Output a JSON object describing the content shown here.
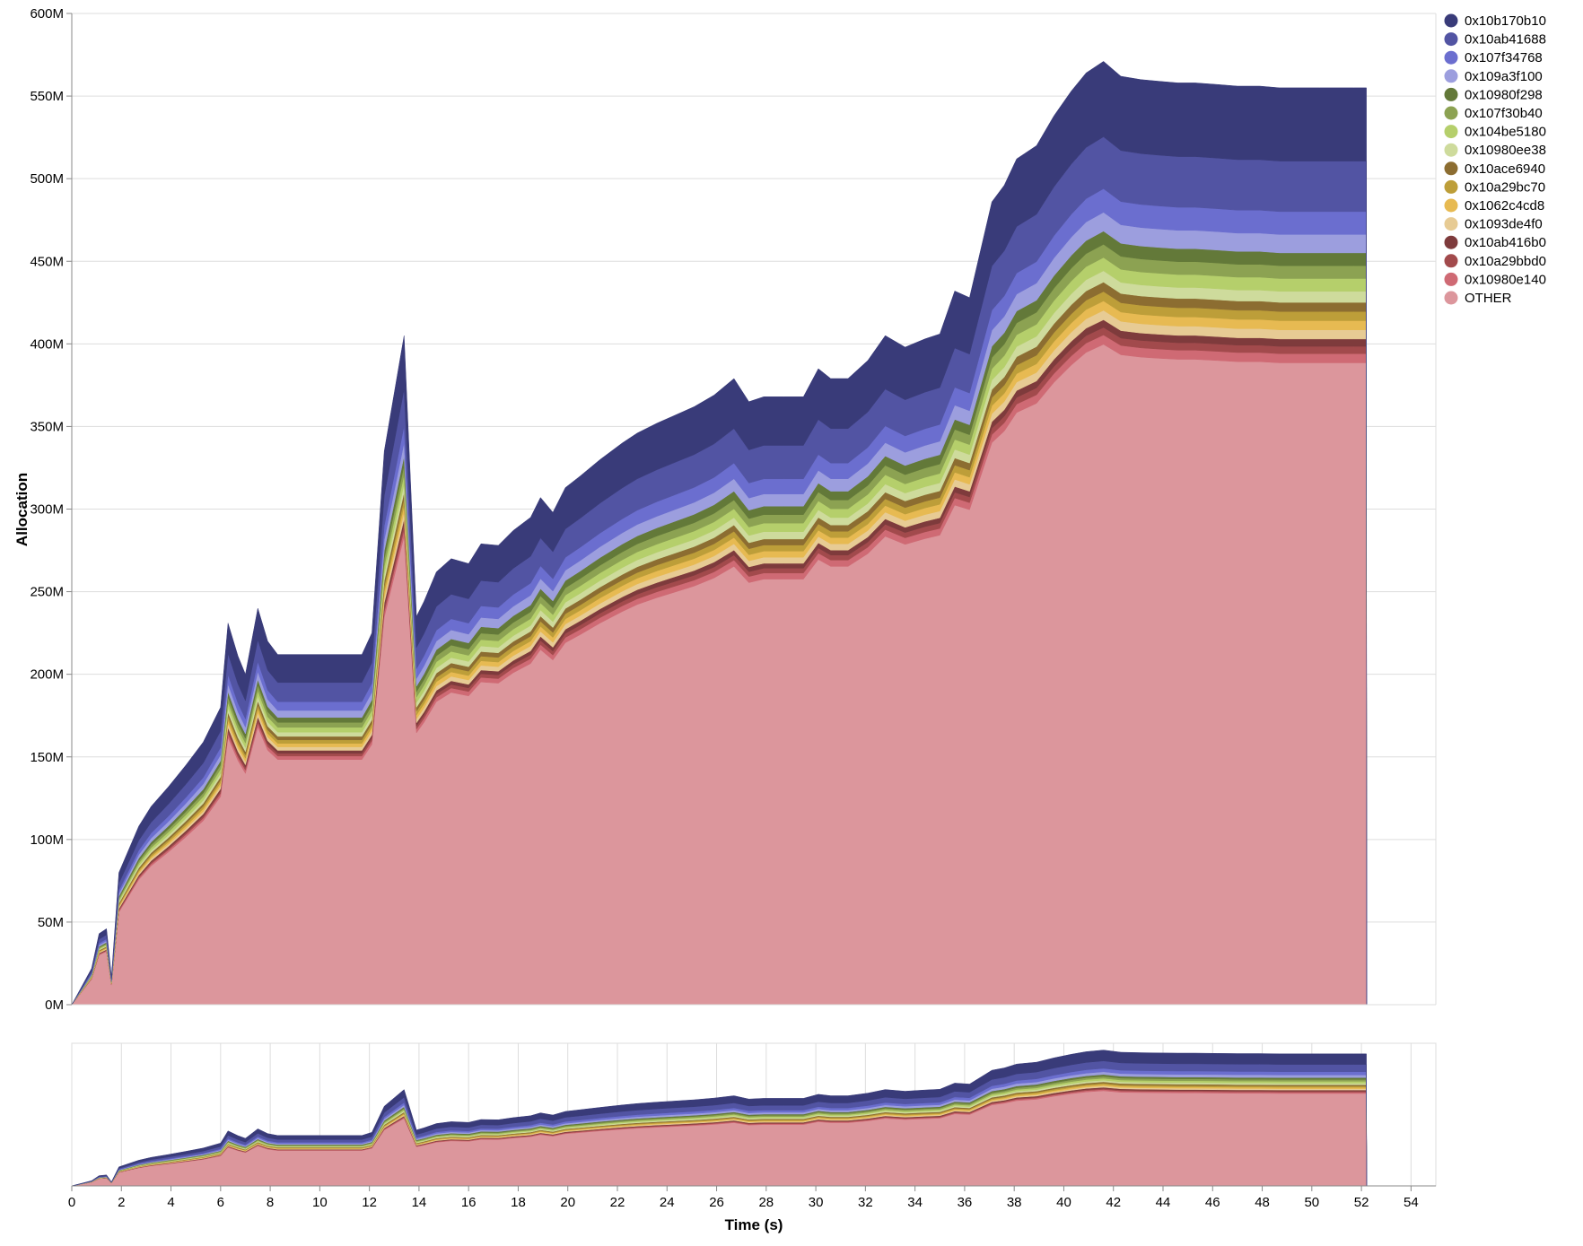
{
  "chart_data": [
    {
      "type": "area",
      "stacked": true,
      "ylabel": "Allocation",
      "xlabel": "",
      "ylim": [
        0,
        600
      ],
      "xlim": [
        0,
        55
      ],
      "y_unit_suffix": "M",
      "y_ticks": [
        0,
        50,
        100,
        150,
        200,
        250,
        300,
        350,
        400,
        450,
        500,
        550,
        600
      ],
      "y_tick_labels": [
        "0M",
        "50M",
        "100M",
        "150M",
        "200M",
        "250M",
        "300M",
        "350M",
        "400M",
        "450M",
        "500M",
        "550M",
        "600M"
      ],
      "grid": "horizontal",
      "legend_position": "right",
      "x": [
        0,
        0.8,
        1.1,
        1.4,
        1.6,
        1.9,
        2.7,
        3.2,
        3.9,
        4.6,
        5.3,
        6.0,
        6.3,
        6.7,
        7.0,
        7.5,
        7.9,
        8.3,
        11.7,
        12.1,
        12.6,
        13.4,
        13.9,
        14.2,
        14.7,
        15.3,
        16.0,
        16.5,
        17.2,
        17.8,
        18.5,
        18.9,
        19.4,
        19.9,
        20.5,
        21.3,
        22.2,
        22.8,
        23.6,
        24.2,
        25.1,
        25.9,
        26.7,
        27.3,
        27.9,
        28.7,
        29.5,
        30.1,
        30.6,
        31.3,
        32.1,
        32.8,
        33.6,
        34.4,
        35.0,
        35.6,
        36.2,
        37.1,
        37.6,
        38.1,
        38.9,
        39.6,
        40.3,
        40.9,
        41.6,
        42.3,
        43.1,
        43.8,
        44.6,
        45.3,
        46.2,
        47.0,
        47.9,
        48.7,
        49.5,
        50.3,
        51.0,
        51.7,
        52.2,
        52.21
      ],
      "totals": [
        0,
        22,
        43,
        46,
        17,
        80,
        108,
        120,
        132,
        145,
        159,
        180,
        231,
        211,
        200,
        240,
        220,
        212,
        212,
        225,
        335,
        405,
        235,
        244,
        262,
        270,
        267,
        279,
        278,
        287,
        295,
        307,
        298,
        313,
        320,
        330,
        340,
        346,
        352,
        356,
        362,
        369,
        379,
        365,
        368,
        368,
        368,
        385,
        379,
        379,
        390,
        405,
        398,
        403,
        406,
        432,
        428,
        486,
        496,
        512,
        520,
        538,
        553,
        564,
        571,
        562,
        560,
        559,
        558,
        558,
        557,
        556,
        556,
        555,
        555,
        555,
        555,
        555,
        555,
        0
      ],
      "series": [
        {
          "name": "OTHER",
          "color": "#dc969c",
          "share": 0.7
        },
        {
          "name": "0x10980e140",
          "color": "#cf6a74",
          "share": 0.01
        },
        {
          "name": "0x10a29bbd0",
          "color": "#a24a4c",
          "share": 0.008
        },
        {
          "name": "0x10ab416b0",
          "color": "#7e3b3c",
          "share": 0.008
        },
        {
          "name": "0x1093de4f0",
          "color": "#e7cb94",
          "share": 0.01
        },
        {
          "name": "0x1062c4cd8",
          "color": "#e7ba52",
          "share": 0.01
        },
        {
          "name": "0x10a29bc70",
          "color": "#bd9e39",
          "share": 0.01
        },
        {
          "name": "0x10ace6940",
          "color": "#8c6d31",
          "share": 0.01
        },
        {
          "name": "0x10980ee38",
          "color": "#cedb9c",
          "share": 0.012
        },
        {
          "name": "0x104be5180",
          "color": "#b5cf6b",
          "share": 0.014
        },
        {
          "name": "0x107f30b40",
          "color": "#8ca252",
          "share": 0.014
        },
        {
          "name": "0x10980f298",
          "color": "#637939",
          "share": 0.014
        },
        {
          "name": "0x109a3f100",
          "color": "#9c9ede",
          "share": 0.02
        },
        {
          "name": "0x107f34768",
          "color": "#6b6ecf",
          "share": 0.025
        },
        {
          "name": "0x10ab41688",
          "color": "#5254a3",
          "share": 0.055
        },
        {
          "name": "0x10b170b10",
          "color": "#393b79",
          "share": 0.08
        }
      ],
      "legend": [
        {
          "label": "0x10b170b10",
          "color": "#393b79"
        },
        {
          "label": "0x10ab41688",
          "color": "#5254a3"
        },
        {
          "label": "0x107f34768",
          "color": "#6b6ecf"
        },
        {
          "label": "0x109a3f100",
          "color": "#9c9ede"
        },
        {
          "label": "0x10980f298",
          "color": "#637939"
        },
        {
          "label": "0x107f30b40",
          "color": "#8ca252"
        },
        {
          "label": "0x104be5180",
          "color": "#b5cf6b"
        },
        {
          "label": "0x10980ee38",
          "color": "#cedb9c"
        },
        {
          "label": "0x10ace6940",
          "color": "#8c6d31"
        },
        {
          "label": "0x10a29bc70",
          "color": "#bd9e39"
        },
        {
          "label": "0x1062c4cd8",
          "color": "#e7ba52"
        },
        {
          "label": "0x1093de4f0",
          "color": "#e7cb94"
        },
        {
          "label": "0x10ab416b0",
          "color": "#7e3b3c"
        },
        {
          "label": "0x10a29bbd0",
          "color": "#a24a4c"
        },
        {
          "label": "0x10980e140",
          "color": "#cf6a74"
        },
        {
          "label": "OTHER",
          "color": "#dc969c"
        }
      ]
    },
    {
      "type": "area",
      "role": "overview",
      "xlabel": "Time (s)",
      "xlim": [
        0,
        55
      ],
      "x_ticks": [
        0,
        2,
        4,
        6,
        8,
        10,
        12,
        14,
        16,
        18,
        20,
        22,
        24,
        26,
        28,
        30,
        32,
        34,
        36,
        38,
        40,
        42,
        44,
        46,
        48,
        50,
        52,
        54
      ],
      "x_tick_labels": [
        "0",
        "2",
        "4",
        "6",
        "8",
        "10",
        "12",
        "14",
        "16",
        "18",
        "20",
        "22",
        "24",
        "26",
        "28",
        "30",
        "32",
        "34",
        "36",
        "38",
        "40",
        "42",
        "44",
        "46",
        "48",
        "50",
        "52",
        "54"
      ],
      "grid": "vertical"
    }
  ]
}
